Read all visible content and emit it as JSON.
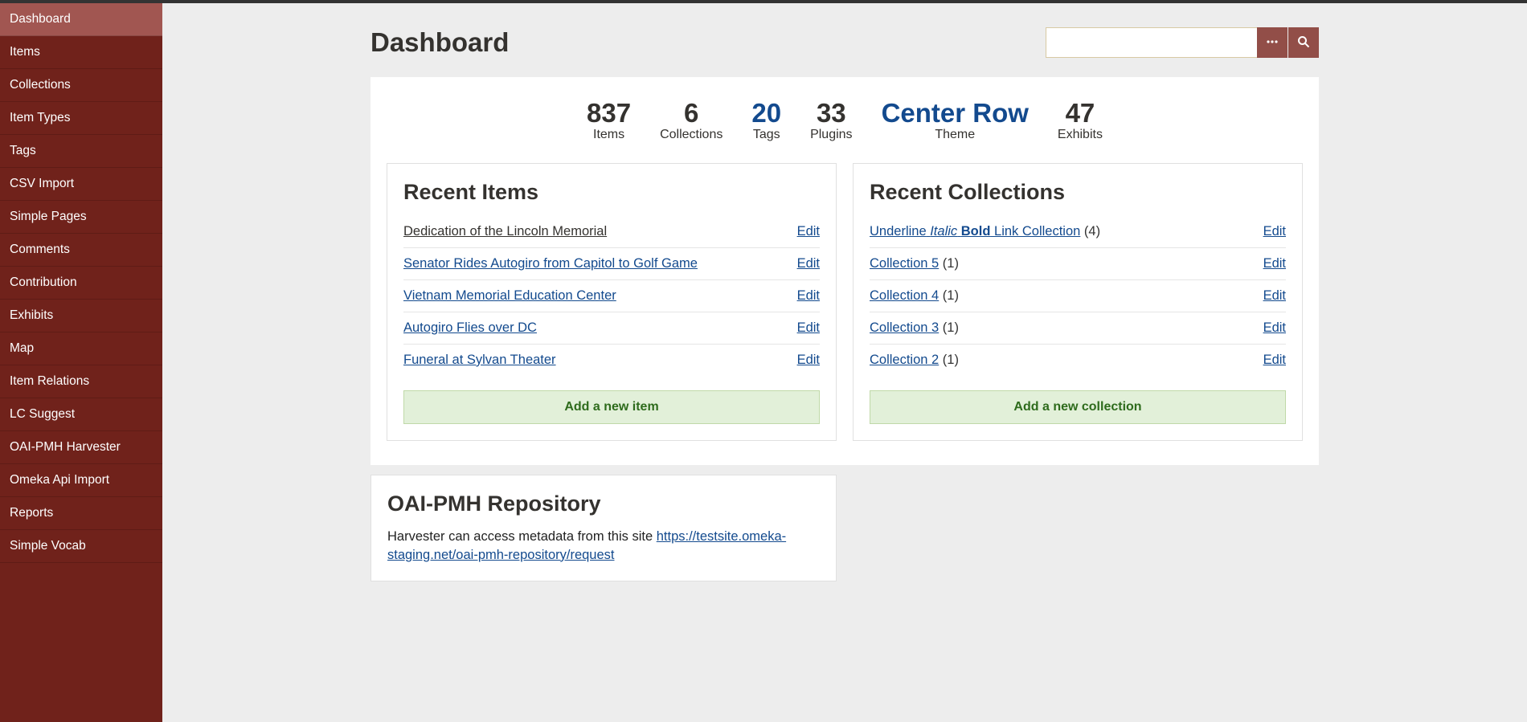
{
  "sidebar": {
    "items": [
      {
        "label": "Dashboard",
        "active": true
      },
      {
        "label": "Items",
        "active": false
      },
      {
        "label": "Collections",
        "active": false
      },
      {
        "label": "Item Types",
        "active": false
      },
      {
        "label": "Tags",
        "active": false
      },
      {
        "label": "CSV Import",
        "active": false
      },
      {
        "label": "Simple Pages",
        "active": false
      },
      {
        "label": "Comments",
        "active": false
      },
      {
        "label": "Contribution",
        "active": false
      },
      {
        "label": "Exhibits",
        "active": false
      },
      {
        "label": "Map",
        "active": false
      },
      {
        "label": "Item Relations",
        "active": false
      },
      {
        "label": "LC Suggest",
        "active": false
      },
      {
        "label": "OAI-PMH Harvester",
        "active": false
      },
      {
        "label": "Omeka Api Import",
        "active": false
      },
      {
        "label": "Reports",
        "active": false
      },
      {
        "label": "Simple Vocab",
        "active": false
      }
    ]
  },
  "header": {
    "title": "Dashboard",
    "search_value": "",
    "search_placeholder": ""
  },
  "stats": [
    {
      "value": "837",
      "label": "Items",
      "linked": false
    },
    {
      "value": "6",
      "label": "Collections",
      "linked": false
    },
    {
      "value": "20",
      "label": "Tags",
      "linked": true
    },
    {
      "value": "33",
      "label": "Plugins",
      "linked": false
    },
    {
      "value": "Center Row",
      "label": "Theme",
      "linked": true
    },
    {
      "value": "47",
      "label": "Exhibits",
      "linked": false
    }
  ],
  "panels": {
    "recent_items": {
      "heading": "Recent Items",
      "edit_label": "Edit",
      "add_label": "Add a new item",
      "rows": [
        {
          "title": "Dedication of the Lincoln Memorial",
          "dark": true
        },
        {
          "title": "Senator Rides Autogiro from Capitol to Golf Game"
        },
        {
          "title": "Vietnam Memorial Education Center"
        },
        {
          "title": "Autogiro Flies over DC"
        },
        {
          "title": "Funeral at Sylvan Theater"
        }
      ]
    },
    "recent_collections": {
      "heading": "Recent Collections",
      "edit_label": "Edit",
      "add_label": "Add a new collection",
      "rows": [
        {
          "rich": {
            "u": "Underline",
            "i": "Italic",
            "b": "Bold",
            "rest": "Link Collection"
          },
          "suffix": " (4)"
        },
        {
          "title": "Collection 5",
          "suffix": " (1)"
        },
        {
          "title": "Collection 4",
          "suffix": " (1)"
        },
        {
          "title": "Collection 3",
          "suffix": " (1)"
        },
        {
          "title": "Collection 2",
          "suffix": " (1)"
        }
      ]
    }
  },
  "oai": {
    "heading": "OAI-PMH Repository",
    "intro": "Harvester can access metadata from this site ",
    "link_text": "https://testsite.omeka-staging.net/oai-pmh-repository/request"
  }
}
